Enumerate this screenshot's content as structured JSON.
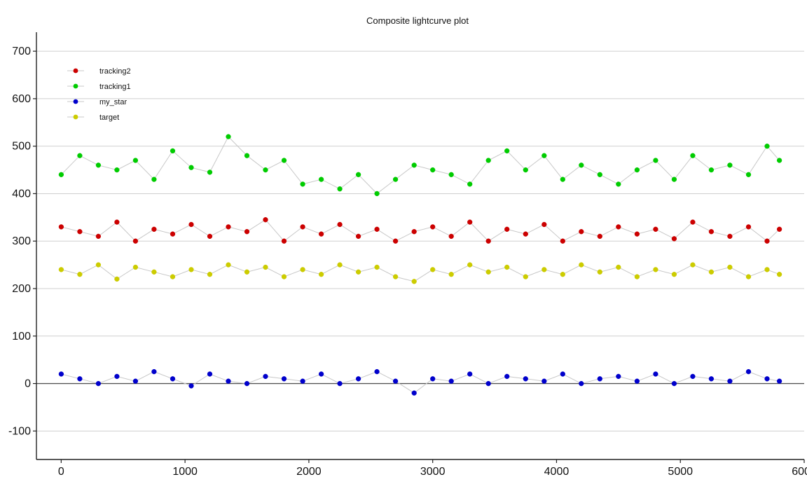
{
  "chart_data": {
    "type": "scatter",
    "title": "Composite lightcurve plot",
    "xlabel": "",
    "ylabel": "",
    "xlim": [
      -200,
      6000
    ],
    "ylim": [
      -160,
      740
    ],
    "x_ticks": [
      0,
      1000,
      2000,
      3000,
      4000,
      5000,
      6000
    ],
    "y_ticks": [
      -100,
      0,
      100,
      200,
      300,
      400,
      500,
      600,
      700
    ],
    "x_tick_labels": [
      "0",
      "1000",
      "2000",
      "3000",
      "4000",
      "5000",
      "6000"
    ],
    "y_tick_labels": [
      "-100",
      "0",
      "100",
      "200",
      "300",
      "400",
      "500",
      "600",
      "700"
    ],
    "grid": true,
    "legend_position": "top-left",
    "connector_color": "#c8c8c8",
    "series": [
      {
        "name": "tracking2",
        "color": "#ff0000",
        "note_color_in_plot": "#cc0000",
        "x": [
          0,
          150,
          300,
          450,
          600,
          750,
          900,
          1050,
          1200,
          1350,
          1500,
          1650,
          1800,
          1950,
          2100,
          2250,
          2400,
          2550,
          2700,
          2850,
          3000,
          3150,
          3300,
          3450,
          3600,
          3750,
          3900,
          4050,
          4200,
          4350,
          4500,
          4650,
          4800,
          4950,
          5100,
          5250,
          5400,
          5550,
          5700,
          5800
        ],
        "y": [
          330,
          320,
          310,
          340,
          300,
          325,
          315,
          335,
          310,
          330,
          320,
          345,
          300,
          330,
          315,
          335,
          310,
          325,
          300,
          320,
          330,
          310,
          340,
          300,
          325,
          315,
          335,
          300,
          320,
          310,
          330,
          315,
          325,
          305,
          340,
          320,
          310,
          330,
          300,
          325
        ]
      },
      {
        "name": "tracking1",
        "color": "#00cc00",
        "x": [
          0,
          150,
          300,
          450,
          600,
          750,
          900,
          1050,
          1200,
          1350,
          1500,
          1650,
          1800,
          1950,
          2100,
          2250,
          2400,
          2550,
          2700,
          2850,
          3000,
          3150,
          3300,
          3450,
          3600,
          3750,
          3900,
          4050,
          4200,
          4350,
          4500,
          4650,
          4800,
          4950,
          5100,
          5250,
          5400,
          5550,
          5700,
          5800
        ],
        "y": [
          440,
          480,
          460,
          450,
          470,
          430,
          490,
          455,
          445,
          520,
          480,
          450,
          470,
          420,
          430,
          410,
          440,
          400,
          430,
          460,
          450,
          440,
          420,
          470,
          490,
          450,
          480,
          430,
          460,
          440,
          420,
          450,
          470,
          430,
          480,
          450,
          460,
          440,
          500,
          470
        ]
      },
      {
        "name": "my_star",
        "color": "#0000cc",
        "x": [
          0,
          150,
          300,
          450,
          600,
          750,
          900,
          1050,
          1200,
          1350,
          1500,
          1650,
          1800,
          1950,
          2100,
          2250,
          2400,
          2550,
          2700,
          2850,
          3000,
          3150,
          3300,
          3450,
          3600,
          3750,
          3900,
          4050,
          4200,
          4350,
          4500,
          4650,
          4800,
          4950,
          5100,
          5250,
          5400,
          5550,
          5700,
          5800
        ],
        "y": [
          20,
          10,
          0,
          15,
          5,
          25,
          10,
          -5,
          20,
          5,
          0,
          15,
          10,
          5,
          20,
          0,
          10,
          25,
          5,
          -20,
          10,
          5,
          20,
          0,
          15,
          10,
          5,
          20,
          0,
          10,
          15,
          5,
          20,
          0,
          15,
          10,
          5,
          25,
          10,
          5
        ]
      },
      {
        "name": "target",
        "color": "#cccc00",
        "x": [
          0,
          150,
          300,
          450,
          600,
          750,
          900,
          1050,
          1200,
          1350,
          1500,
          1650,
          1800,
          1950,
          2100,
          2250,
          2400,
          2550,
          2700,
          2850,
          3000,
          3150,
          3300,
          3450,
          3600,
          3750,
          3900,
          4050,
          4200,
          4350,
          4500,
          4650,
          4800,
          4950,
          5100,
          5250,
          5400,
          5550,
          5700,
          5800
        ],
        "y": [
          240,
          230,
          250,
          220,
          245,
          235,
          225,
          240,
          230,
          250,
          235,
          245,
          225,
          240,
          230,
          250,
          235,
          245,
          225,
          215,
          240,
          230,
          250,
          235,
          245,
          225,
          240,
          230,
          250,
          235,
          245,
          225,
          240,
          230,
          250,
          235,
          245,
          225,
          240,
          230
        ]
      }
    ]
  }
}
